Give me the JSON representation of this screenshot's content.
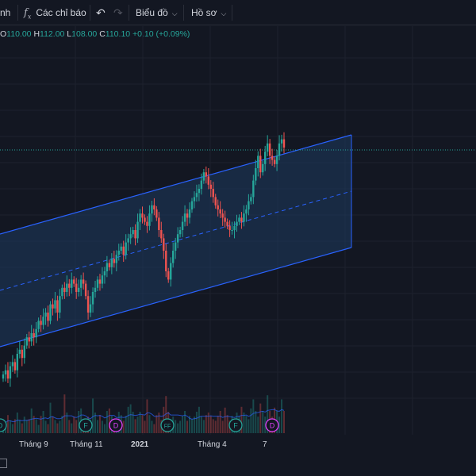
{
  "toolbar": {
    "partial_label": "nh",
    "indicators_label": "Các chỉ báo",
    "indicators_icon": "function-icon",
    "undo_icon": "undo-icon",
    "redo_icon": "redo-icon",
    "chart_type_label": "Biểu đồ",
    "profile_label": "Hồ sơ"
  },
  "ohlc": {
    "open_key": "O",
    "open_value": "110.00",
    "high_key": "H",
    "high_value": "112.00",
    "low_key": "L",
    "low_value": "108.00",
    "close_key": "C",
    "close_value": "110.10",
    "change": "+0.10 (+0.09%)"
  },
  "colors": {
    "background": "#131722",
    "up": "#26a69a",
    "down": "#ef5350",
    "channel_line": "#2962ff",
    "channel_fill": "#1e3a5f",
    "dividend_marker": "#26a69a",
    "earnings_marker": "#e040fb"
  },
  "x_axis": {
    "labels": [
      {
        "text": "Tháng 9",
        "bold": false
      },
      {
        "text": "Tháng 11",
        "bold": false
      },
      {
        "text": "2021",
        "bold": true
      },
      {
        "text": "Tháng 4",
        "bold": false
      },
      {
        "text": "7",
        "bold": false
      }
    ]
  },
  "event_markers": [
    {
      "text": "D",
      "type": "dividend"
    },
    {
      "text": "F",
      "type": "dividend"
    },
    {
      "text": "D",
      "type": "earnings"
    },
    {
      "text": "FF",
      "type": "dividend"
    },
    {
      "text": "F",
      "type": "dividend"
    },
    {
      "text": "D",
      "type": "earnings"
    }
  ],
  "chart_data": {
    "type": "candlestick",
    "series": [
      {
        "close": [
          65,
          66,
          64,
          67,
          68,
          66,
          70,
          71,
          69,
          72,
          74,
          73,
          75,
          74,
          76,
          78,
          77,
          79,
          80,
          78,
          82,
          81,
          83,
          80,
          84,
          86,
          85,
          87,
          86,
          88,
          87,
          85,
          86,
          88,
          87,
          84,
          80,
          82,
          85,
          86,
          88,
          87,
          89,
          90,
          92,
          91,
          93,
          92,
          94,
          95,
          96,
          94,
          97,
          98,
          99,
          100,
          98,
          102,
          104,
          103,
          102,
          101,
          104,
          106,
          105,
          103,
          100,
          98,
          95,
          90,
          88,
          92,
          95,
          97,
          99,
          100,
          102,
          104,
          103,
          105,
          107,
          108,
          109,
          110,
          112,
          114,
          113,
          111,
          110,
          108,
          106,
          105,
          104,
          103,
          102,
          101,
          100,
          100,
          101,
          102,
          103,
          102,
          104,
          105,
          107,
          108,
          112,
          115,
          118,
          114,
          116,
          119,
          121,
          118,
          117,
          116,
          118,
          121,
          122,
          120
        ]
      }
    ],
    "volume": [
      3,
      2,
      4,
      3,
      2,
      3,
      5,
      3,
      2,
      4,
      3,
      3,
      6,
      4,
      3,
      2,
      4,
      5,
      3,
      2,
      7,
      4,
      3,
      2,
      3,
      4,
      9,
      5,
      3,
      2,
      4,
      3,
      5,
      6,
      3,
      2,
      4,
      3,
      8,
      5,
      3,
      4,
      3,
      2,
      5,
      6,
      4,
      3,
      3,
      5,
      4,
      3,
      4,
      6,
      7,
      5,
      3,
      4,
      5,
      4,
      3,
      8,
      4,
      3,
      2,
      4,
      5,
      3,
      6,
      9,
      5,
      3,
      4,
      3,
      2,
      3,
      4,
      5,
      3,
      4,
      3,
      4,
      5,
      6,
      4,
      3,
      4,
      5,
      4,
      3,
      3,
      4,
      5,
      3,
      6,
      4,
      3,
      4,
      3,
      5,
      4,
      6,
      5,
      4,
      3,
      6,
      8,
      5,
      4,
      7,
      5,
      4,
      9,
      5,
      4,
      6,
      5,
      4,
      8,
      5
    ]
  }
}
